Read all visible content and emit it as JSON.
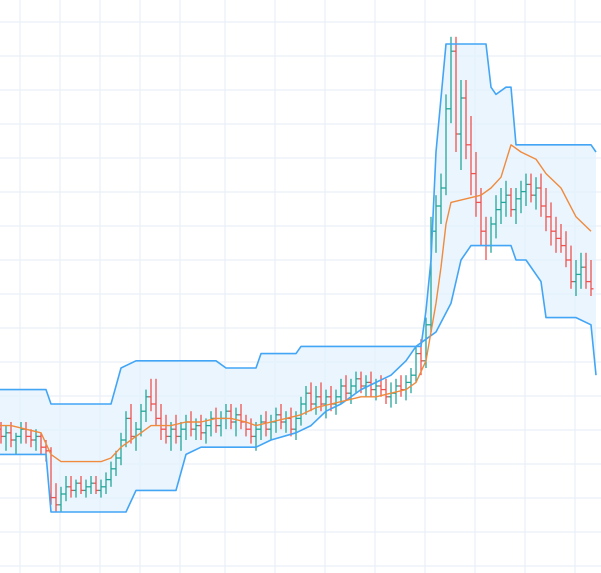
{
  "chart_data": {
    "type": "ohlc",
    "title": "",
    "xlabel": "",
    "ylabel": "",
    "xlim": [
      0,
      150
    ],
    "ylim": [
      0,
      150
    ],
    "grid": true,
    "legend": "none",
    "colors": {
      "up": "#26a69a",
      "down": "#ef5350",
      "middle_band": "#f08a3c",
      "channel_line": "#42a5f5",
      "channel_fill": "#e3f2fd",
      "grid": "#e6eef4"
    },
    "candles": [
      [
        0,
        34,
        36,
        30,
        33
      ],
      [
        1,
        33,
        35,
        29,
        31
      ],
      [
        2,
        31,
        34,
        27,
        32
      ],
      [
        3,
        32,
        35,
        28,
        30
      ],
      [
        4,
        30,
        32,
        26,
        31
      ],
      [
        5,
        31,
        35,
        29,
        33
      ],
      [
        6,
        33,
        35,
        29,
        31
      ],
      [
        7,
        31,
        33,
        28,
        30
      ],
      [
        8,
        30,
        33,
        27,
        31
      ],
      [
        9,
        31,
        32,
        26,
        28
      ],
      [
        10,
        28,
        30,
        24,
        27
      ],
      [
        11,
        27,
        28,
        12,
        14
      ],
      [
        12,
        14,
        18,
        10,
        12
      ],
      [
        13,
        12,
        17,
        10,
        15
      ],
      [
        14,
        15,
        20,
        13,
        17
      ],
      [
        15,
        17,
        20,
        14,
        16
      ],
      [
        16,
        16,
        19,
        14,
        18
      ],
      [
        17,
        18,
        20,
        15,
        16
      ],
      [
        18,
        16,
        19,
        14,
        17
      ],
      [
        19,
        17,
        20,
        15,
        18
      ],
      [
        20,
        18,
        20,
        15,
        16
      ],
      [
        21,
        16,
        19,
        14,
        17
      ],
      [
        22,
        17,
        21,
        15,
        19
      ],
      [
        23,
        19,
        24,
        17,
        22
      ],
      [
        24,
        22,
        27,
        20,
        25
      ],
      [
        25,
        25,
        32,
        23,
        30
      ],
      [
        26,
        30,
        38,
        28,
        36
      ],
      [
        27,
        36,
        40,
        29,
        31
      ],
      [
        28,
        31,
        35,
        27,
        33
      ],
      [
        29,
        33,
        40,
        31,
        38
      ],
      [
        30,
        38,
        44,
        35,
        42
      ],
      [
        31,
        42,
        47,
        38,
        40
      ],
      [
        32,
        40,
        47,
        34,
        36
      ],
      [
        33,
        36,
        40,
        30,
        33
      ],
      [
        34,
        33,
        37,
        29,
        31
      ],
      [
        35,
        31,
        35,
        27,
        33
      ],
      [
        36,
        33,
        37,
        29,
        31
      ],
      [
        37,
        31,
        35,
        27,
        33
      ],
      [
        38,
        33,
        37,
        30,
        35
      ],
      [
        39,
        35,
        38,
        31,
        33
      ],
      [
        40,
        33,
        36,
        30,
        34
      ],
      [
        41,
        34,
        37,
        30,
        32
      ],
      [
        42,
        32,
        36,
        29,
        34
      ],
      [
        43,
        34,
        38,
        31,
        36
      ],
      [
        44,
        36,
        39,
        32,
        34
      ],
      [
        45,
        34,
        38,
        31,
        36
      ],
      [
        46,
        36,
        40,
        33,
        38
      ],
      [
        47,
        38,
        40,
        33,
        35
      ],
      [
        48,
        35,
        39,
        31,
        37
      ],
      [
        49,
        37,
        40,
        33,
        35
      ],
      [
        50,
        35,
        37,
        31,
        33
      ],
      [
        51,
        33,
        36,
        29,
        31
      ],
      [
        52,
        31,
        35,
        27,
        33
      ],
      [
        53,
        33,
        37,
        30,
        35
      ],
      [
        54,
        35,
        38,
        31,
        33
      ],
      [
        55,
        33,
        37,
        30,
        35
      ],
      [
        56,
        35,
        39,
        32,
        37
      ],
      [
        57,
        37,
        40,
        33,
        35
      ],
      [
        58,
        35,
        38,
        32,
        36
      ],
      [
        59,
        36,
        39,
        31,
        33
      ],
      [
        60,
        33,
        38,
        30,
        36
      ],
      [
        61,
        36,
        42,
        34,
        40
      ],
      [
        62,
        40,
        45,
        37,
        43
      ],
      [
        63,
        43,
        46,
        38,
        40
      ],
      [
        64,
        40,
        45,
        37,
        42
      ],
      [
        65,
        42,
        46,
        38,
        40
      ],
      [
        66,
        40,
        44,
        36,
        42
      ],
      [
        67,
        42,
        45,
        38,
        40
      ],
      [
        68,
        40,
        44,
        37,
        42
      ],
      [
        69,
        42,
        47,
        40,
        45
      ],
      [
        70,
        45,
        48,
        41,
        43
      ],
      [
        71,
        43,
        47,
        40,
        45
      ],
      [
        72,
        45,
        49,
        43,
        47
      ],
      [
        73,
        47,
        49,
        43,
        45
      ],
      [
        74,
        45,
        48,
        42,
        46
      ],
      [
        75,
        46,
        49,
        42,
        44
      ],
      [
        76,
        44,
        47,
        41,
        45
      ],
      [
        77,
        45,
        48,
        42,
        44
      ],
      [
        78,
        44,
        47,
        40,
        42
      ],
      [
        79,
        42,
        46,
        39,
        43
      ],
      [
        80,
        43,
        47,
        40,
        45
      ],
      [
        81,
        45,
        48,
        42,
        44
      ],
      [
        82,
        44,
        48,
        41,
        46
      ],
      [
        83,
        46,
        50,
        43,
        48
      ],
      [
        84,
        48,
        56,
        46,
        54
      ],
      [
        85,
        54,
        58,
        48,
        52
      ],
      [
        86,
        52,
        64,
        50,
        62
      ],
      [
        87,
        62,
        92,
        60,
        88
      ],
      [
        88,
        88,
        98,
        82,
        95
      ],
      [
        89,
        95,
        104,
        90,
        100
      ],
      [
        90,
        100,
        126,
        98,
        122
      ],
      [
        91,
        122,
        142,
        118,
        138
      ],
      [
        92,
        138,
        142,
        110,
        115
      ],
      [
        93,
        115,
        130,
        105,
        125
      ],
      [
        94,
        125,
        130,
        108,
        112
      ],
      [
        95,
        112,
        120,
        98,
        104
      ],
      [
        96,
        104,
        110,
        92,
        96
      ],
      [
        97,
        96,
        100,
        84,
        88
      ],
      [
        98,
        88,
        92,
        80,
        84
      ],
      [
        99,
        84,
        92,
        82,
        90
      ],
      [
        100,
        90,
        98,
        86,
        94
      ],
      [
        101,
        94,
        100,
        90,
        96
      ],
      [
        102,
        96,
        102,
        92,
        98
      ],
      [
        103,
        98,
        100,
        92,
        94
      ],
      [
        104,
        94,
        100,
        90,
        97
      ],
      [
        105,
        97,
        102,
        93,
        99
      ],
      [
        106,
        99,
        104,
        95,
        101
      ],
      [
        107,
        101,
        104,
        96,
        98
      ],
      [
        108,
        98,
        103,
        94,
        100
      ],
      [
        109,
        100,
        104,
        92,
        95
      ],
      [
        110,
        95,
        100,
        88,
        92
      ],
      [
        111,
        92,
        96,
        84,
        88
      ],
      [
        112,
        88,
        92,
        82,
        86
      ],
      [
        113,
        86,
        90,
        82,
        84
      ],
      [
        114,
        84,
        88,
        78,
        80
      ],
      [
        115,
        80,
        84,
        72,
        74
      ],
      [
        116,
        74,
        80,
        70,
        76
      ],
      [
        117,
        76,
        82,
        72,
        78
      ],
      [
        118,
        78,
        82,
        72,
        74
      ],
      [
        119,
        74,
        80,
        70,
        72
      ]
    ],
    "middle_band": [
      [
        0,
        34
      ],
      [
        3,
        34
      ],
      [
        6,
        33
      ],
      [
        9,
        32
      ],
      [
        11,
        26
      ],
      [
        13,
        24
      ],
      [
        16,
        24
      ],
      [
        19,
        24
      ],
      [
        21,
        24
      ],
      [
        23,
        25
      ],
      [
        25,
        28
      ],
      [
        27,
        30
      ],
      [
        29,
        32
      ],
      [
        31,
        34
      ],
      [
        33,
        34
      ],
      [
        35,
        34
      ],
      [
        38,
        35
      ],
      [
        41,
        35
      ],
      [
        44,
        36
      ],
      [
        47,
        36
      ],
      [
        50,
        35
      ],
      [
        52,
        34
      ],
      [
        55,
        35
      ],
      [
        58,
        36
      ],
      [
        61,
        37
      ],
      [
        64,
        39
      ],
      [
        67,
        40
      ],
      [
        70,
        41
      ],
      [
        73,
        42
      ],
      [
        76,
        42
      ],
      [
        79,
        43
      ],
      [
        82,
        44
      ],
      [
        84,
        46
      ],
      [
        86,
        52
      ],
      [
        87,
        60
      ],
      [
        88,
        68
      ],
      [
        89,
        78
      ],
      [
        90,
        90
      ],
      [
        91,
        96
      ],
      [
        94,
        97
      ],
      [
        97,
        98
      ],
      [
        99,
        100
      ],
      [
        101,
        103
      ],
      [
        103,
        112
      ],
      [
        105,
        110
      ],
      [
        108,
        108
      ],
      [
        110,
        104
      ],
      [
        113,
        100
      ],
      [
        116,
        92
      ],
      [
        119,
        88
      ]
    ],
    "upper_channel": [
      [
        0,
        44
      ],
      [
        10,
        44
      ],
      [
        11,
        40
      ],
      [
        20,
        40
      ],
      [
        23,
        40
      ],
      [
        25,
        50
      ],
      [
        28,
        52
      ],
      [
        44,
        52
      ],
      [
        46,
        50
      ],
      [
        52,
        50
      ],
      [
        53,
        54
      ],
      [
        60,
        54
      ],
      [
        61,
        56
      ],
      [
        85,
        56
      ],
      [
        86,
        66
      ],
      [
        87,
        80
      ],
      [
        88,
        110
      ],
      [
        90,
        140
      ],
      [
        98,
        140
      ],
      [
        99,
        128
      ],
      [
        100,
        126
      ],
      [
        102,
        128
      ],
      [
        103,
        128
      ],
      [
        104,
        112
      ],
      [
        119,
        112
      ],
      [
        120,
        110
      ]
    ],
    "lower_channel": [
      [
        0,
        26
      ],
      [
        10,
        26
      ],
      [
        11,
        10
      ],
      [
        26,
        10
      ],
      [
        28,
        16
      ],
      [
        36,
        16
      ],
      [
        38,
        26
      ],
      [
        41,
        28
      ],
      [
        46,
        28
      ],
      [
        52,
        28
      ],
      [
        55,
        30
      ],
      [
        60,
        32
      ],
      [
        63,
        34
      ],
      [
        66,
        38
      ],
      [
        69,
        40
      ],
      [
        73,
        44
      ],
      [
        76,
        46
      ],
      [
        79,
        48
      ],
      [
        82,
        52
      ],
      [
        84,
        56
      ],
      [
        86,
        58
      ],
      [
        88,
        60
      ],
      [
        91,
        68
      ],
      [
        93,
        80
      ],
      [
        95,
        84
      ],
      [
        99,
        84
      ],
      [
        101,
        84
      ],
      [
        103,
        84
      ],
      [
        104,
        80
      ],
      [
        106,
        80
      ],
      [
        109,
        74
      ],
      [
        110,
        64
      ],
      [
        116,
        64
      ],
      [
        119,
        62
      ],
      [
        120,
        48
      ]
    ]
  }
}
